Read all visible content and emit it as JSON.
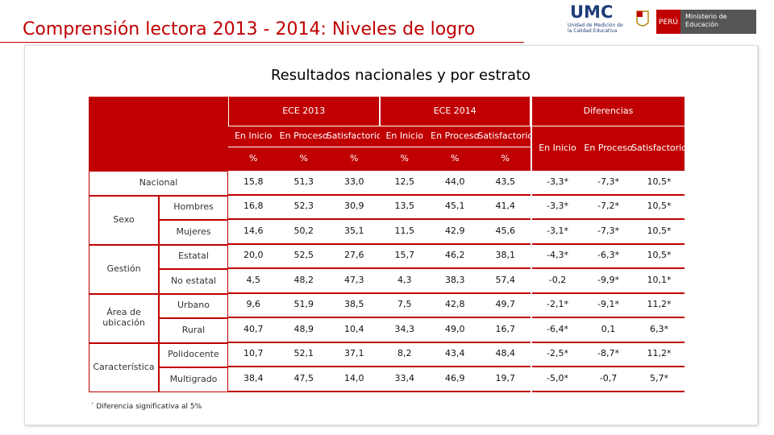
{
  "header": {
    "title": "Comprensión lectora 2013 - 2014: Niveles de logro",
    "logo": {
      "umc": "UMC",
      "umc_subtitle": "Unidad de Medición de la Calidad Educativa",
      "country": "PERÚ",
      "ministry": "Ministerio de Educación"
    }
  },
  "subtitle": "Resultados nacionales y por estrato",
  "table": {
    "groups": [
      "ECE 2013",
      "ECE 2014",
      "Diferencias"
    ],
    "levels": [
      "En Inicio",
      "En Proceso",
      "Satisfactorio"
    ],
    "unit": "%",
    "rows": [
      {
        "group": "Nacional",
        "subrows": [
          {
            "values": [
              "15,8",
              "51,3",
              "33,0",
              "12,5",
              "44,0",
              "43,5",
              "-3,3*",
              "-7,3*",
              "10,5*"
            ]
          }
        ]
      },
      {
        "group": "Sexo",
        "subrows": [
          {
            "label": "Hombres",
            "values": [
              "16,8",
              "52,3",
              "30,9",
              "13,5",
              "45,1",
              "41,4",
              "-3,3*",
              "-7,2*",
              "10,5*"
            ]
          },
          {
            "label": "Mujeres",
            "values": [
              "14,6",
              "50,2",
              "35,1",
              "11,5",
              "42,9",
              "45,6",
              "-3,1*",
              "-7,3*",
              "10,5*"
            ]
          }
        ]
      },
      {
        "group": "Gestión",
        "subrows": [
          {
            "label": "Estatal",
            "values": [
              "20,0",
              "52,5",
              "27,6",
              "15,7",
              "46,2",
              "38,1",
              "-4,3*",
              "-6,3*",
              "10,5*"
            ]
          },
          {
            "label": "No estatal",
            "values": [
              "4,5",
              "48,2",
              "47,3",
              "4,3",
              "38,3",
              "57,4",
              "-0,2",
              "-9,9*",
              "10,1*"
            ]
          }
        ]
      },
      {
        "group": "Área de ubicación",
        "subrows": [
          {
            "label": "Urbano",
            "values": [
              "9,6",
              "51,9",
              "38,5",
              "7,5",
              "42,8",
              "49,7",
              "-2,1*",
              "-9,1*",
              "11,2*"
            ]
          },
          {
            "label": "Rural",
            "values": [
              "40,7",
              "48,9",
              "10,4",
              "34,3",
              "49,0",
              "16,7",
              "-6,4*",
              "0,1",
              "6,3*"
            ]
          }
        ]
      },
      {
        "group": "Característica",
        "subrows": [
          {
            "label": "Polidocente",
            "values": [
              "10,7",
              "52,1",
              "37,1",
              "8,2",
              "43,4",
              "48,4",
              "-2,5*",
              "-8,7*",
              "11,2*"
            ]
          },
          {
            "label": "Multigrado",
            "values": [
              "38,4",
              "47,5",
              "14,0",
              "33,4",
              "46,9",
              "19,7",
              "-5,0*",
              "-0,7",
              "5,7*"
            ]
          }
        ]
      }
    ],
    "footnote": "´ Diferencia significativa al 5%"
  }
}
